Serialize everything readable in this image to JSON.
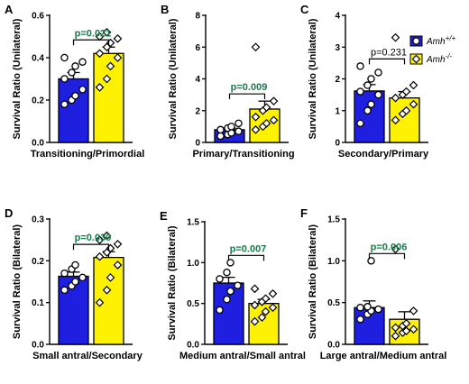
{
  "colors": {
    "wildtype": "#1f1fe0",
    "knockout": "#fff200",
    "significant_pvalue": "#1a7a4a",
    "nonsignificant_pvalue": "#000000"
  },
  "legend": {
    "items": [
      {
        "base": "Amh",
        "sup": "+/+",
        "color": "#1f1fe0",
        "marker": "circle"
      },
      {
        "base": "Amh",
        "sup": "-/-",
        "color": "#fff200",
        "marker": "diamond"
      }
    ],
    "placement": "right of panel C"
  },
  "chart_data": [
    {
      "letter": "A",
      "type": "bar",
      "ylabel": "Survival Ratio (Unilateral)",
      "xlabel": "Transitioning/Primordial",
      "ylim": [
        0,
        0.6
      ],
      "yticks": [
        "0.0",
        "0.2",
        "0.4",
        "0.6"
      ],
      "ytick_values": [
        0,
        0.2,
        0.4,
        0.6
      ],
      "pvalue": "p=0.021",
      "significant": true,
      "series": [
        {
          "mean": 0.3,
          "sem": 0.03,
          "points": [
            0.18,
            0.2,
            0.22,
            0.25,
            0.3,
            0.33,
            0.36,
            0.38,
            0.4
          ]
        },
        {
          "mean": 0.42,
          "sem": 0.03,
          "points": [
            0.26,
            0.3,
            0.36,
            0.4,
            0.42,
            0.45,
            0.47,
            0.49,
            0.5,
            0.52
          ]
        }
      ]
    },
    {
      "letter": "B",
      "type": "bar",
      "ylabel": "Survival Ratio (Unilateral)",
      "xlabel": "Primary/Transitioning",
      "ylim": [
        0,
        8
      ],
      "yticks": [
        "0",
        "2",
        "4",
        "6",
        "8"
      ],
      "ytick_values": [
        0,
        2,
        4,
        6,
        8
      ],
      "pvalue": "p=0.009",
      "significant": true,
      "series": [
        {
          "mean": 0.8,
          "sem": 0.1,
          "points": [
            0.4,
            0.5,
            0.6,
            0.7,
            0.8,
            0.9,
            1.0,
            1.2
          ]
        },
        {
          "mean": 2.1,
          "sem": 0.5,
          "points": [
            0.8,
            1.0,
            1.2,
            1.4,
            1.6,
            2.0,
            2.2,
            2.6,
            6.0
          ]
        }
      ]
    },
    {
      "letter": "C",
      "type": "bar",
      "ylabel": "Survival Ratio (Unilateral)",
      "xlabel": "Secondary/Primary",
      "ylim": [
        0,
        4
      ],
      "yticks": [
        "0",
        "1",
        "2",
        "3",
        "4"
      ],
      "ytick_values": [
        0,
        1,
        2,
        3,
        4
      ],
      "pvalue": "p=0.231",
      "significant": false,
      "series": [
        {
          "mean": 1.62,
          "sem": 0.2,
          "points": [
            0.6,
            1.0,
            1.2,
            1.5,
            1.6,
            1.8,
            2.0,
            2.2,
            2.4
          ]
        },
        {
          "mean": 1.4,
          "sem": 0.2,
          "points": [
            0.7,
            0.9,
            1.0,
            1.2,
            1.4,
            1.5,
            1.6,
            1.8,
            3.3
          ]
        }
      ]
    },
    {
      "letter": "D",
      "type": "bar",
      "ylabel": "Survival Ratio (Bilateral)",
      "xlabel": "Small antral/Secondary",
      "ylim": [
        0,
        0.3
      ],
      "yticks": [
        "0.0",
        "0.1",
        "0.2",
        "0.3"
      ],
      "ytick_values": [
        0,
        0.1,
        0.2,
        0.3
      ],
      "pvalue": "p=0.030",
      "significant": true,
      "series": [
        {
          "mean": 0.163,
          "sem": 0.01,
          "points": [
            0.13,
            0.14,
            0.15,
            0.16,
            0.17,
            0.18,
            0.19
          ]
        },
        {
          "mean": 0.208,
          "sem": 0.014,
          "points": [
            0.1,
            0.13,
            0.16,
            0.19,
            0.21,
            0.22,
            0.23,
            0.24,
            0.25,
            0.26
          ]
        }
      ]
    },
    {
      "letter": "E",
      "type": "bar",
      "ylabel": "Survival Ratio (Bilateral)",
      "xlabel": "Medium antral/Small antral",
      "ylim": [
        0,
        1.5
      ],
      "yticks": [
        "0.0",
        "0.5",
        "1.0",
        "1.5"
      ],
      "ytick_values": [
        0,
        0.5,
        1.0,
        1.5
      ],
      "pvalue": "p=0.007",
      "significant": true,
      "series": [
        {
          "mean": 0.75,
          "sem": 0.07,
          "points": [
            0.42,
            0.55,
            0.65,
            0.72,
            0.8,
            0.88,
            1.0
          ]
        },
        {
          "mean": 0.5,
          "sem": 0.05,
          "points": [
            0.28,
            0.33,
            0.4,
            0.45,
            0.48,
            0.52,
            0.56,
            0.62,
            0.68
          ]
        }
      ]
    },
    {
      "letter": "F",
      "type": "bar",
      "ylabel": "Survival Ratio (Bilateral)",
      "xlabel": "Large antral/Medium antral",
      "ylim": [
        0,
        1.5
      ],
      "yticks": [
        "0.0",
        "0.5",
        "1.0",
        "1.5"
      ],
      "ytick_values": [
        0,
        0.5,
        1.0,
        1.5
      ],
      "pvalue": "p=0.006",
      "significant": true,
      "series": [
        {
          "mean": 0.44,
          "sem": 0.08,
          "points": [
            0.3,
            0.36,
            0.4,
            0.42,
            0.44,
            0.45,
            1.0
          ]
        },
        {
          "mean": 0.3,
          "sem": 0.09,
          "points": [
            0.1,
            0.14,
            0.16,
            0.18,
            0.2,
            0.22,
            0.25,
            0.4,
            1.14
          ]
        }
      ]
    }
  ]
}
